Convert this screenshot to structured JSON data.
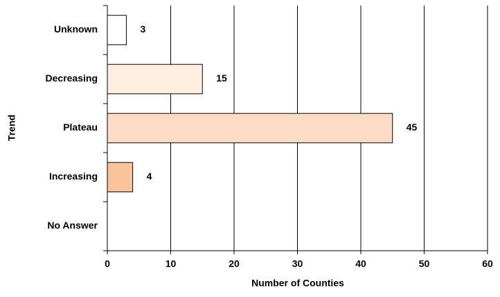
{
  "chart_data": {
    "type": "bar",
    "orientation": "horizontal",
    "x_label": "Number of Counties",
    "y_label": "Trend",
    "categories": [
      "Unknown",
      "Decreasing",
      "Plateau",
      "Increasing",
      "No Answer"
    ],
    "values": [
      3,
      15,
      45,
      4,
      null
    ],
    "colors": [
      "#ffffff",
      "#fdeedf",
      "#fcdcc4",
      "#f9c49a",
      "#ffffff"
    ],
    "xlim": [
      0,
      60
    ],
    "xticks": [
      0,
      10,
      20,
      30,
      40,
      50,
      60
    ],
    "grid": true
  }
}
